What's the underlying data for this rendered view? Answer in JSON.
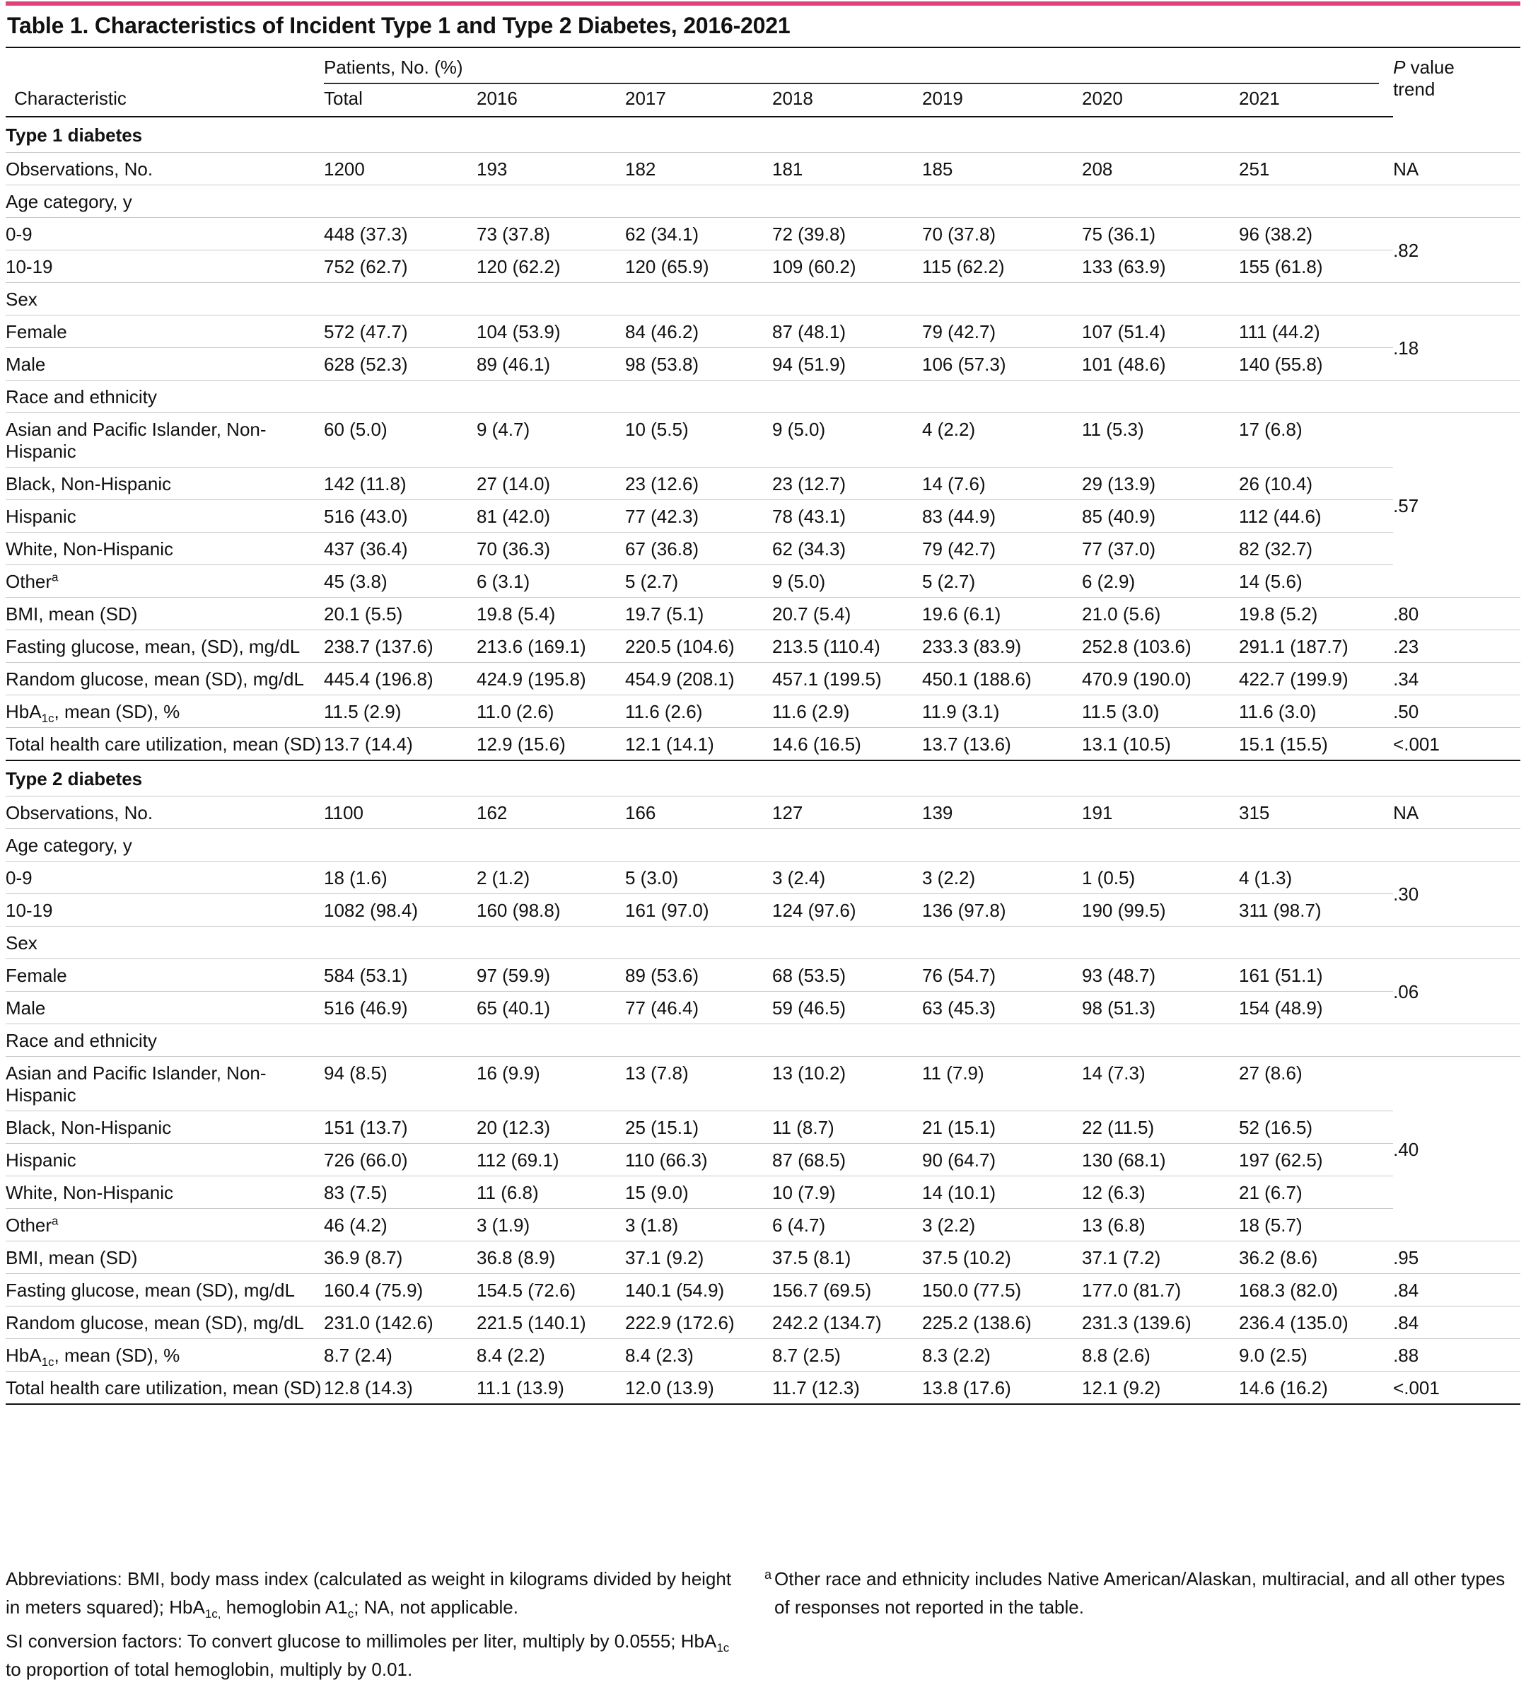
{
  "title": "Table 1. Characteristics of Incident Type 1 and Type 2 Diabetes, 2016-2021",
  "header": {
    "characteristic": "Characteristic",
    "patients": "Patients, No. (%)",
    "columns": [
      "Total",
      "2016",
      "2017",
      "2018",
      "2019",
      "2020",
      "2021"
    ],
    "pvalue_italic": "P",
    "pvalue_rest1": " value",
    "pvalue_rest2": "trend"
  },
  "type1": {
    "heading": "Type 1 diabetes",
    "observations": {
      "label": "Observations, No.",
      "values": [
        "1200",
        "193",
        "182",
        "181",
        "185",
        "208",
        "251"
      ],
      "p": "NA"
    },
    "age": {
      "label": "Age category, y",
      "p": ".82",
      "rows": [
        {
          "label": "0-9",
          "values": [
            "448 (37.3)",
            "73 (37.8)",
            "62 (34.1)",
            "72 (39.8)",
            "70 (37.8)",
            "75 (36.1)",
            "96 (38.2)"
          ]
        },
        {
          "label": "10-19",
          "values": [
            "752 (62.7)",
            "120 (62.2)",
            "120 (65.9)",
            "109 (60.2)",
            "115 (62.2)",
            "133 (63.9)",
            "155 (61.8)"
          ]
        }
      ]
    },
    "sex": {
      "label": "Sex",
      "p": ".18",
      "rows": [
        {
          "label": "Female",
          "values": [
            "572 (47.7)",
            "104 (53.9)",
            "84 (46.2)",
            "87 (48.1)",
            "79 (42.7)",
            "107 (51.4)",
            "111 (44.2)"
          ]
        },
        {
          "label": "Male",
          "values": [
            "628 (52.3)",
            "89 (46.1)",
            "98 (53.8)",
            "94 (51.9)",
            "106 (57.3)",
            "101 (48.6)",
            "140 (55.8)"
          ]
        }
      ]
    },
    "race": {
      "label": "Race and ethnicity",
      "p": ".57",
      "rows": [
        {
          "label": "Asian and Pacific Islander, Non-Hispanic",
          "values": [
            "60 (5.0)",
            "9 (4.7)",
            "10 (5.5)",
            "9 (5.0)",
            "4 (2.2)",
            "11 (5.3)",
            "17 (6.8)"
          ]
        },
        {
          "label": "Black, Non-Hispanic",
          "values": [
            "142 (11.8)",
            "27 (14.0)",
            "23 (12.6)",
            "23 (12.7)",
            "14 (7.6)",
            "29 (13.9)",
            "26 (10.4)"
          ]
        },
        {
          "label": "Hispanic",
          "values": [
            "516 (43.0)",
            "81 (42.0)",
            "77 (42.3)",
            "78 (43.1)",
            "83 (44.9)",
            "85 (40.9)",
            "112 (44.6)"
          ]
        },
        {
          "label": "White, Non-Hispanic",
          "values": [
            "437 (36.4)",
            "70 (36.3)",
            "67 (36.8)",
            "62 (34.3)",
            "79 (42.7)",
            "77 (37.0)",
            "82 (32.7)"
          ]
        },
        {
          "label": "Other",
          "sup": "a",
          "values": [
            "45 (3.8)",
            "6 (3.1)",
            "5 (2.7)",
            "9 (5.0)",
            "5 (2.7)",
            "6 (2.9)",
            "14 (5.6)"
          ]
        }
      ]
    },
    "bmi": {
      "label": "BMI, mean (SD)",
      "values": [
        "20.1 (5.5)",
        "19.8 (5.4)",
        "19.7 (5.1)",
        "20.7 (5.4)",
        "19.6 (6.1)",
        "21.0 (5.6)",
        "19.8 (5.2)"
      ],
      "p": ".80"
    },
    "fasting": {
      "label": "Fasting glucose, mean, (SD), mg/dL",
      "values": [
        "238.7 (137.6)",
        "213.6 (169.1)",
        "220.5 (104.6)",
        "213.5 (110.4)",
        "233.3 (83.9)",
        "252.8 (103.6)",
        "291.1 (187.7)"
      ],
      "p": ".23"
    },
    "random": {
      "label": "Random glucose, mean (SD), mg/dL",
      "values": [
        "445.4 (196.8)",
        "424.9 (195.8)",
        "454.9 (208.1)",
        "457.1 (199.5)",
        "450.1 (188.6)",
        "470.9 (190.0)",
        "422.7 (199.9)"
      ],
      "p": ".34"
    },
    "hba1c": {
      "label_pre": "HbA",
      "label_sub": "1c",
      "label_post": ", mean (SD), %",
      "values": [
        "11.5 (2.9)",
        "11.0 (2.6)",
        "11.6 (2.6)",
        "11.6 (2.9)",
        "11.9 (3.1)",
        "11.5 (3.0)",
        "11.6 (3.0)"
      ],
      "p": ".50"
    },
    "util": {
      "label": "Total health care utilization, mean (SD)",
      "values": [
        "13.7 (14.4)",
        "12.9 (15.6)",
        "12.1 (14.1)",
        "14.6 (16.5)",
        "13.7 (13.6)",
        "13.1 (10.5)",
        "15.1 (15.5)"
      ],
      "p": "<.001"
    }
  },
  "type2": {
    "heading": "Type 2 diabetes",
    "observations": {
      "label": "Observations, No.",
      "values": [
        "1100",
        "162",
        "166",
        "127",
        "139",
        "191",
        "315"
      ],
      "p": "NA"
    },
    "age": {
      "label": "Age category, y",
      "p": ".30",
      "rows": [
        {
          "label": "0-9",
          "values": [
            "18 (1.6)",
            "2 (1.2)",
            "5 (3.0)",
            "3 (2.4)",
            "3 (2.2)",
            "1 (0.5)",
            "4 (1.3)"
          ]
        },
        {
          "label": "10-19",
          "values": [
            "1082 (98.4)",
            "160 (98.8)",
            "161 (97.0)",
            "124 (97.6)",
            "136 (97.8)",
            "190 (99.5)",
            "311 (98.7)"
          ]
        }
      ]
    },
    "sex": {
      "label": "Sex",
      "p": ".06",
      "rows": [
        {
          "label": "Female",
          "values": [
            "584 (53.1)",
            "97 (59.9)",
            "89 (53.6)",
            "68 (53.5)",
            "76 (54.7)",
            "93 (48.7)",
            "161 (51.1)"
          ]
        },
        {
          "label": "Male",
          "values": [
            "516 (46.9)",
            "65 (40.1)",
            "77 (46.4)",
            "59 (46.5)",
            "63 (45.3)",
            "98 (51.3)",
            "154 (48.9)"
          ]
        }
      ]
    },
    "race": {
      "label": "Race and ethnicity",
      "p": ".40",
      "rows": [
        {
          "label": "Asian and Pacific Islander, Non-Hispanic",
          "values": [
            "94 (8.5)",
            "16 (9.9)",
            "13 (7.8)",
            "13 (10.2)",
            "11 (7.9)",
            "14 (7.3)",
            "27 (8.6)"
          ]
        },
        {
          "label": "Black, Non-Hispanic",
          "values": [
            "151 (13.7)",
            "20 (12.3)",
            "25 (15.1)",
            "11 (8.7)",
            "21 (15.1)",
            "22 (11.5)",
            "52 (16.5)"
          ]
        },
        {
          "label": "Hispanic",
          "values": [
            "726 (66.0)",
            "112 (69.1)",
            "110 (66.3)",
            "87 (68.5)",
            "90 (64.7)",
            "130 (68.1)",
            "197 (62.5)"
          ]
        },
        {
          "label": "White, Non-Hispanic",
          "values": [
            "83 (7.5)",
            "11 (6.8)",
            "15 (9.0)",
            "10 (7.9)",
            "14 (10.1)",
            "12 (6.3)",
            "21 (6.7)"
          ]
        },
        {
          "label": "Other",
          "sup": "a",
          "values": [
            "46 (4.2)",
            "3 (1.9)",
            "3 (1.8)",
            "6 (4.7)",
            "3 (2.2)",
            "13 (6.8)",
            "18 (5.7)"
          ]
        }
      ]
    },
    "bmi": {
      "label": "BMI, mean (SD)",
      "values": [
        "36.9 (8.7)",
        "36.8 (8.9)",
        "37.1 (9.2)",
        "37.5 (8.1)",
        "37.5 (10.2)",
        "37.1 (7.2)",
        "36.2 (8.6)"
      ],
      "p": ".95"
    },
    "fasting": {
      "label": "Fasting glucose, mean (SD), mg/dL",
      "values": [
        "160.4 (75.9)",
        "154.5 (72.6)",
        "140.1 (54.9)",
        "156.7 (69.5)",
        "150.0 (77.5)",
        "177.0 (81.7)",
        "168.3 (82.0)"
      ],
      "p": ".84"
    },
    "random": {
      "label": "Random glucose, mean (SD), mg/dL",
      "values": [
        "231.0 (142.6)",
        "221.5 (140.1)",
        "222.9 (172.6)",
        "242.2 (134.7)",
        "225.2 (138.6)",
        "231.3 (139.6)",
        "236.4 (135.0)"
      ],
      "p": ".84"
    },
    "hba1c": {
      "label_pre": "HbA",
      "label_sub": "1c",
      "label_post": ", mean (SD), %",
      "values": [
        "8.7 (2.4)",
        "8.4 (2.2)",
        "8.4 (2.3)",
        "8.7 (2.5)",
        "8.3 (2.2)",
        "8.8 (2.6)",
        "9.0 (2.5)"
      ],
      "p": ".88"
    },
    "util": {
      "label": "Total health care utilization, mean (SD)",
      "values": [
        "12.8 (14.3)",
        "11.1 (13.9)",
        "12.0 (13.9)",
        "11.7 (12.3)",
        "13.8 (17.6)",
        "12.1 (9.2)",
        "14.6 (16.2)"
      ],
      "p": "<.001"
    }
  },
  "notes": {
    "abbrev_a": "Abbreviations: BMI, body mass index (calculated as weight in kilograms divided by height in meters squared); HbA",
    "abbrev_sub": "1c,",
    "abbrev_b": " hemoglobin A1",
    "abbrev_sub2": "c",
    "abbrev_c": "; NA, not applicable.",
    "si_a": "SI conversion factors: To convert glucose to millimoles per liter, multiply by 0.0555; HbA",
    "si_sub": "1c",
    "si_b": " to proportion of total hemoglobin, multiply by 0.01.",
    "footnote_mark": "a",
    "footnote": "Other race and ethnicity includes Native American/Alaskan, multiracial, and all other types of responses not reported in the table."
  },
  "colors": {
    "accent": "#e0417a",
    "rule": "#111111",
    "divider": "#c8c8c8"
  }
}
